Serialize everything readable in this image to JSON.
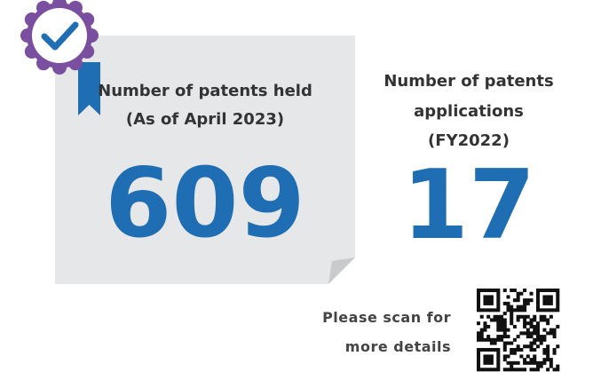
{
  "held": {
    "label_line1": "Number of  patents held",
    "label_line2": "(As of April 2023)",
    "value": 609
  },
  "applications": {
    "label_line1": "Number of patents",
    "label_line2": "applications",
    "label_line3": "(FY2022)",
    "value": 17
  },
  "scan": {
    "line1": "Please scan for",
    "line2": "more details"
  }
}
